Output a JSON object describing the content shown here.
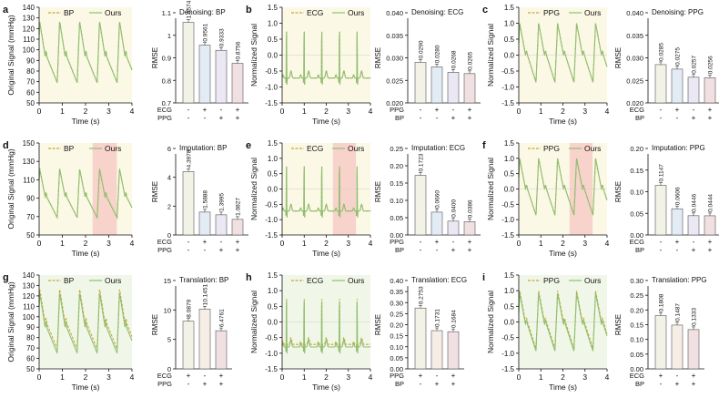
{
  "colors": {
    "line_ref": "#c7a93a",
    "line_ours": "#8fbf73",
    "shade_yellow": "#fbf8e6",
    "shade_green": "#f1f7e8",
    "shade_pink": "#f8d3cc",
    "bar_colors": [
      "#f2f2e6",
      "#e3ecf5",
      "#ebe7f3",
      "#f1e0e2"
    ],
    "bar_colors_two": [
      "#f2f2e6",
      "#f6eee6",
      "#f1e0e2"
    ]
  },
  "panels": [
    {
      "letter": "a",
      "task": "Denoising",
      "signal": "BP",
      "ylabel": "Original Signal (mmHg)",
      "xlabel": "Time (s)",
      "yticks": [
        50,
        60,
        70,
        80,
        90,
        100,
        110,
        120,
        130,
        140
      ],
      "ylim": [
        50,
        140
      ],
      "xticks": [
        0,
        1,
        2,
        3,
        4
      ],
      "legend": [
        "BP",
        "Ours"
      ],
      "shade": "none",
      "chart_data": {
        "type": "bar",
        "title": "Denoising: BP",
        "ylabel": "RMSE",
        "ylim": [
          0.7,
          1.1
        ],
        "yticks": [
          0.7,
          0.8,
          0.9,
          1.0,
          1.1
        ],
        "values": [
          1.0574,
          0.9561,
          0.9333,
          0.8756
        ],
        "labels": [
          "1.0574",
          "0.9561",
          "0.9333",
          "0.8756"
        ],
        "cond_rows": [
          {
            "name": "ECG",
            "marks": [
              "-",
              "+",
              "-",
              "+"
            ]
          },
          {
            "name": "PPG",
            "marks": [
              "-",
              "-",
              "+",
              "+"
            ]
          }
        ]
      }
    },
    {
      "letter": "b",
      "task": "Denoising",
      "signal": "ECG",
      "ylabel": "Normalized Signal",
      "xlabel": "Time (s)",
      "yticks": [
        -1.5,
        -1.0,
        -0.5,
        0.0,
        0.5,
        1.0,
        1.5
      ],
      "ylim": [
        -1.5,
        1.5
      ],
      "ytick_labels": [
        "-1.5",
        "-1.0",
        "-0.5",
        "0.0",
        "0.5",
        "1.0",
        "1.5"
      ],
      "xticks": [
        0,
        1,
        2,
        3,
        4
      ],
      "legend": [
        "ECG",
        "Ours"
      ],
      "shade": "none",
      "chart_data": {
        "type": "bar",
        "title": "Denoising: ECG",
        "ylabel": "RMSE",
        "ylim": [
          0.02,
          0.04
        ],
        "yticks": [
          0.02,
          0.025,
          0.03,
          0.035,
          0.04
        ],
        "ytick_labels": [
          "0.020",
          "0.025",
          "0.030",
          "0.035",
          "0.040"
        ],
        "values": [
          0.029,
          0.028,
          0.0268,
          0.0265
        ],
        "labels": [
          "0.0290",
          "0.0280",
          "0.0268",
          "0.0265"
        ],
        "cond_rows": [
          {
            "name": "PPG",
            "marks": [
              "-",
              "+",
              "-",
              "+"
            ]
          },
          {
            "name": "BP",
            "marks": [
              "-",
              "-",
              "+",
              "+"
            ]
          }
        ]
      }
    },
    {
      "letter": "c",
      "task": "Denoising",
      "signal": "PPG",
      "ylabel": "Normalized Signal",
      "xlabel": "Time (s)",
      "yticks": [
        -1.5,
        -1.0,
        -0.5,
        0.0,
        0.5,
        1.0,
        1.5
      ],
      "ylim": [
        -1.5,
        1.5
      ],
      "ytick_labels": [
        "-1.5",
        "-1.0",
        "-0.5",
        "0.0",
        "0.5",
        "1.0",
        "1.5"
      ],
      "xticks": [
        0,
        1,
        2,
        3,
        4
      ],
      "legend": [
        "PPG",
        "Ours"
      ],
      "shade": "none",
      "chart_data": {
        "type": "bar",
        "title": "Denoising: PPG",
        "ylabel": "RMSE",
        "ylim": [
          0.02,
          0.04
        ],
        "yticks": [
          0.02,
          0.025,
          0.03,
          0.035,
          0.04
        ],
        "ytick_labels": [
          "0.020",
          "0.025",
          "0.030",
          "0.035",
          "0.040"
        ],
        "values": [
          0.0285,
          0.0275,
          0.0257,
          0.0256
        ],
        "labels": [
          "0.0285",
          "0.0275",
          "0.0257",
          "0.0256"
        ],
        "cond_rows": [
          {
            "name": "ECG",
            "marks": [
              "-",
              "+",
              "-",
              "+"
            ]
          },
          {
            "name": "BP",
            "marks": [
              "-",
              "-",
              "+",
              "+"
            ]
          }
        ]
      }
    },
    {
      "letter": "d",
      "task": "Imputation",
      "signal": "BP",
      "ylabel": "Original Signal (mmHg)",
      "xlabel": "Time (s)",
      "yticks": [
        50,
        70,
        90,
        110,
        130,
        150
      ],
      "ylim": [
        50,
        150
      ],
      "xticks": [
        0,
        1,
        2,
        3,
        4
      ],
      "legend": [
        "BP",
        "Ours"
      ],
      "shade": "imputation",
      "chart_data": {
        "type": "bar",
        "title": "Imputation: BP",
        "ylabel": "RMSE",
        "ylim": [
          0,
          6
        ],
        "yticks": [
          0,
          2,
          4,
          6
        ],
        "values": [
          4.3978,
          1.5888,
          1.3995,
          1.0827
        ],
        "labels": [
          "4.3978",
          "1.5888",
          "1.3995",
          "1.0827"
        ],
        "cond_rows": [
          {
            "name": "ECG",
            "marks": [
              "-",
              "+",
              "-",
              "+"
            ]
          },
          {
            "name": "PPG",
            "marks": [
              "-",
              "-",
              "+",
              "+"
            ]
          }
        ]
      }
    },
    {
      "letter": "e",
      "task": "Imputation",
      "signal": "ECG",
      "ylabel": "Normalized Signal",
      "xlabel": "Time (s)",
      "yticks": [
        -1.5,
        -1.0,
        -0.5,
        0.0,
        0.5,
        1.0,
        1.5
      ],
      "ylim": [
        -1.5,
        1.5
      ],
      "ytick_labels": [
        "-1.5",
        "-1.0",
        "-0.5",
        "0.0",
        "0.5",
        "1.0",
        "1.5"
      ],
      "xticks": [
        0,
        1,
        2,
        3,
        4
      ],
      "legend": [
        "ECG",
        "Ours"
      ],
      "shade": "imputation",
      "chart_data": {
        "type": "bar",
        "title": "Imputation: ECG",
        "ylabel": "RMSE",
        "ylim": [
          0,
          0.25
        ],
        "yticks": [
          0,
          0.05,
          0.1,
          0.15,
          0.2,
          0.25
        ],
        "ytick_labels": [
          "0.00",
          "0.05",
          "0.10",
          "0.15",
          "0.20",
          "0.25"
        ],
        "values": [
          0.1723,
          0.066,
          0.04,
          0.0386
        ],
        "labels": [
          "0.1723",
          "0.0660",
          "0.0400",
          "0.0386"
        ],
        "cond_rows": [
          {
            "name": "PPG",
            "marks": [
              "-",
              "+",
              "-",
              "+"
            ]
          },
          {
            "name": "BP",
            "marks": [
              "-",
              "-",
              "+",
              "+"
            ]
          }
        ]
      }
    },
    {
      "letter": "f",
      "task": "Imputation",
      "signal": "PPG",
      "ylabel": "Normalized Signal",
      "xlabel": "Time (s)",
      "yticks": [
        -1.5,
        -1.0,
        -0.5,
        0.0,
        0.5,
        1.0,
        1.5
      ],
      "ylim": [
        -1.5,
        1.5
      ],
      "ytick_labels": [
        "-1.5",
        "-1.0",
        "-0.5",
        "0.0",
        "0.5",
        "1.0",
        "1.5"
      ],
      "xticks": [
        0,
        1,
        2,
        3,
        4
      ],
      "legend": [
        "PPG",
        "Ours"
      ],
      "shade": "imputation",
      "chart_data": {
        "type": "bar",
        "title": "Imputation: PPG",
        "ylabel": "RMSE",
        "ylim": [
          0,
          0.2
        ],
        "yticks": [
          0,
          0.05,
          0.1,
          0.15,
          0.2
        ],
        "ytick_labels": [
          "0.00",
          "0.05",
          "0.10",
          "0.15",
          "0.20"
        ],
        "values": [
          0.1147,
          0.0606,
          0.0446,
          0.0444
        ],
        "labels": [
          "0.1147",
          "0.0606",
          "0.0446",
          "0.0444"
        ],
        "cond_rows": [
          {
            "name": "ECG",
            "marks": [
              "-",
              "+",
              "-",
              "+"
            ]
          },
          {
            "name": "BP",
            "marks": [
              "-",
              "-",
              "+",
              "+"
            ]
          }
        ]
      }
    },
    {
      "letter": "g",
      "task": "Translation",
      "signal": "BP",
      "ylabel": "Original Signal (mmHg)",
      "xlabel": "Time (s)",
      "yticks": [
        50,
        60,
        70,
        80,
        90,
        100,
        110,
        120,
        130,
        140
      ],
      "ylim": [
        50,
        140
      ],
      "xticks": [
        0,
        1,
        2,
        3,
        4
      ],
      "legend": [
        "BP",
        "Ours"
      ],
      "shade": "translation",
      "chart_data": {
        "type": "bar",
        "title": "Translation: BP",
        "ylabel": "RMSE",
        "ylim": [
          0,
          15
        ],
        "yticks": [
          0,
          5,
          10,
          15
        ],
        "values": [
          8.0879,
          10.1451,
          6.4761
        ],
        "labels": [
          "8.0879",
          "10.1451",
          "6.4761"
        ],
        "cond_rows": [
          {
            "name": "ECG",
            "marks": [
              "+",
              "-",
              "+"
            ]
          },
          {
            "name": "PPG",
            "marks": [
              "-",
              "+",
              "+"
            ]
          }
        ]
      }
    },
    {
      "letter": "h",
      "task": "Translation",
      "signal": "ECG",
      "ylabel": "Normalized Signal",
      "xlabel": "Time (s)",
      "yticks": [
        -1.5,
        -1.0,
        -0.5,
        0.0,
        0.5,
        1.0,
        1.5
      ],
      "ylim": [
        -1.5,
        1.5
      ],
      "ytick_labels": [
        "-1.5",
        "-1.0",
        "-0.5",
        "0.0",
        "0.5",
        "1.0",
        "1.5"
      ],
      "xticks": [
        0,
        1,
        2,
        3,
        4
      ],
      "legend": [
        "ECG",
        "Ours"
      ],
      "shade": "translation",
      "chart_data": {
        "type": "bar",
        "title": "Translation: ECG",
        "ylabel": "RMSE",
        "ylim": [
          0,
          0.4
        ],
        "yticks": [
          0,
          0.05,
          0.1,
          0.15,
          0.2,
          0.25,
          0.3,
          0.35,
          0.4
        ],
        "ytick_labels": [
          "0.00",
          "0.05",
          "0.10",
          "0.15",
          "0.20",
          "0.25",
          "0.30",
          "0.35",
          "0.40"
        ],
        "values": [
          0.2753,
          0.1731,
          0.1684
        ],
        "labels": [
          "0.2753",
          "0.1731",
          "0.1684"
        ],
        "cond_rows": [
          {
            "name": "PPG",
            "marks": [
              "+",
              "-",
              "+"
            ]
          },
          {
            "name": "BP",
            "marks": [
              "-",
              "+",
              "+"
            ]
          }
        ]
      }
    },
    {
      "letter": "i",
      "task": "Translation",
      "signal": "PPG",
      "ylabel": "Normalized Signal",
      "xlabel": "Time (s)",
      "yticks": [
        -1.5,
        -1.0,
        -0.5,
        0.0,
        0.5,
        1.0,
        1.5
      ],
      "ylim": [
        -1.5,
        1.5
      ],
      "ytick_labels": [
        "-1.5",
        "-1.0",
        "-0.5",
        "0.0",
        "0.5",
        "1.0",
        "1.5"
      ],
      "xticks": [
        0,
        1,
        2,
        3,
        4
      ],
      "legend": [
        "PPG",
        "Ours"
      ],
      "shade": "translation",
      "chart_data": {
        "type": "bar",
        "title": "Translation: PPG",
        "ylabel": "RMSE",
        "ylim": [
          0,
          0.3
        ],
        "yticks": [
          0,
          0.05,
          0.1,
          0.15,
          0.2,
          0.25,
          0.3
        ],
        "ytick_labels": [
          "0.00",
          "0.05",
          "0.10",
          "0.15",
          "0.20",
          "0.25",
          "0.30"
        ],
        "values": [
          0.1808,
          0.1487,
          0.1333
        ],
        "labels": [
          "0.1808",
          "0.1487",
          "0.1333"
        ],
        "cond_rows": [
          {
            "name": "ECG",
            "marks": [
              "+",
              "-",
              "+"
            ]
          },
          {
            "name": "BP",
            "marks": [
              "-",
              "+",
              "+"
            ]
          }
        ]
      }
    }
  ]
}
